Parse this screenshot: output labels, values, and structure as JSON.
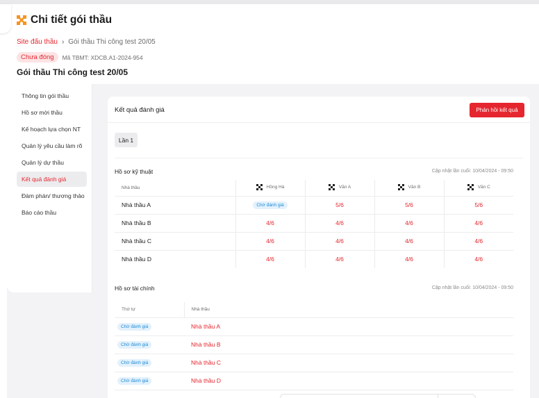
{
  "header": {
    "title": "Chi tiết gói thầu",
    "logo_icon": "x-logo-icon",
    "accent": "#e5262e"
  },
  "breadcrumb": {
    "root": "Site đấu thầu",
    "current": "Gói thầu Thi công test 20/05"
  },
  "status": {
    "badge": "Chưa đóng",
    "tbmt": "Mã TBMT: XDCB.A1-2024-954"
  },
  "package_title": "Gói thầu Thi công test 20/05",
  "sidebar": {
    "items": [
      {
        "label": "Thông tin gói thầu",
        "active": false
      },
      {
        "label": "Hồ sơ mời thầu",
        "active": false
      },
      {
        "label": "Kế hoạch lựa chọn NT",
        "active": false
      },
      {
        "label": "Quản lý yêu cầu làm rõ",
        "active": false
      },
      {
        "label": "Quản lý dự thầu",
        "active": false
      },
      {
        "label": "Kết quả đánh giá",
        "active": true
      },
      {
        "label": "Đàm phán/ thương thảo",
        "active": false
      },
      {
        "label": "Báo cáo thầu",
        "active": false
      }
    ]
  },
  "card": {
    "title": "Kết quả đánh giá",
    "feedback_button": "Phản hồi kết quả",
    "round_tab": "Lần 1"
  },
  "technical": {
    "title": "Hồ sơ kỹ thuật",
    "updated": "Cập nhật lần cuối: 10/04/2024 - 09:50",
    "columns": [
      "Nhà thầu",
      "Hồng Hà",
      "Văn A",
      "Văn B",
      "Văn C"
    ],
    "rows": [
      {
        "name": "Nhà thầu A",
        "c1": "Chờ đánh giá",
        "c2": "5/6",
        "c3": "5/6",
        "c4": "5/6"
      },
      {
        "name": "Nhà thầu B",
        "c1": "4/6",
        "c2": "4/6",
        "c3": "4/6",
        "c4": "4/6"
      },
      {
        "name": "Nhà thầu C",
        "c1": "4/6",
        "c2": "4/6",
        "c3": "4/6",
        "c4": "4/6"
      },
      {
        "name": "Nhà thầu D",
        "c1": "4/6",
        "c2": "4/6",
        "c3": "4/6",
        "c4": "4/6"
      }
    ]
  },
  "financial": {
    "title": "Hồ sơ tài chính",
    "updated": "Cập nhật lần cuối: 10/04/2024 - 09:50",
    "columns": [
      "Thứ tự",
      "Nhà thầu"
    ],
    "rows": [
      {
        "status": "Chờ đánh giá",
        "name": "Nhà thầu A"
      },
      {
        "status": "Chờ đánh giá",
        "name": "Nhà thầu B"
      },
      {
        "status": "Chờ đánh giá",
        "name": "Nhà thầu C"
      },
      {
        "status": "Chờ đánh giá",
        "name": "Nhà thầu D"
      }
    ]
  }
}
